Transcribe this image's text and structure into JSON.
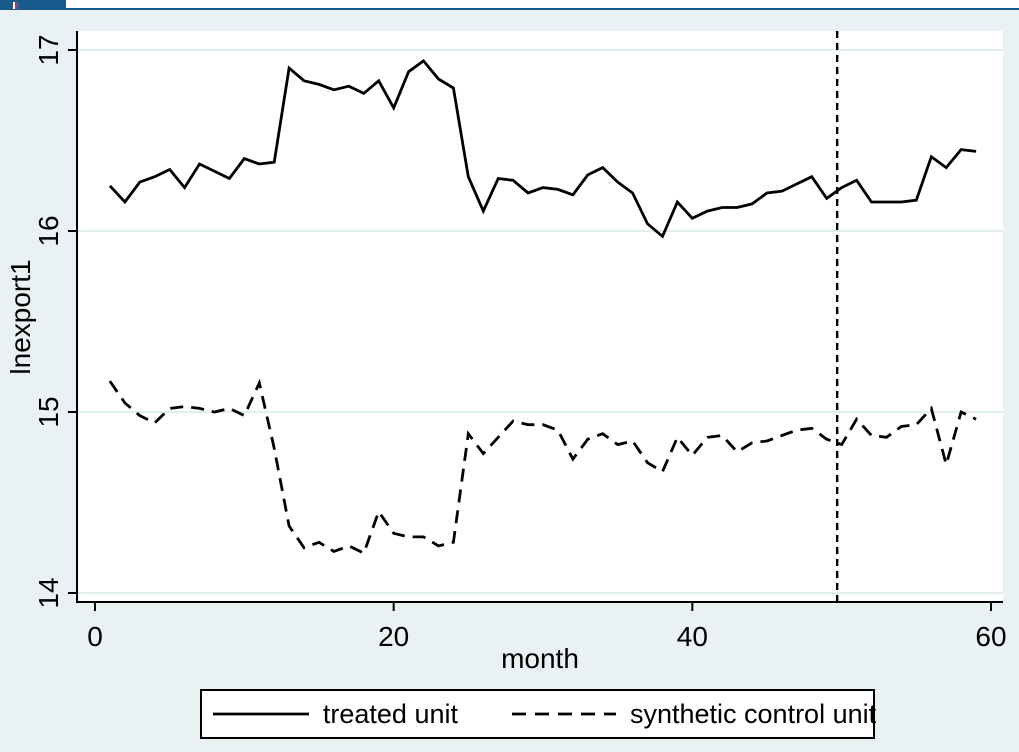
{
  "window": {
    "tab_label": "",
    "tab_color": "#175a8c"
  },
  "colors": {
    "graph_background": "#eaf1f2",
    "plot_background": "#ffffff",
    "gridline": "#e2edef",
    "axis": "#000000",
    "series_line": "#000000",
    "legend_background": "#ffffff",
    "legend_border": "#000000"
  },
  "chart_data": {
    "type": "line",
    "title": "",
    "xlabel": "month",
    "ylabel": "lnexport1",
    "x_ticks": [
      0,
      20,
      40,
      60
    ],
    "y_ticks": [
      14,
      15,
      16,
      17
    ],
    "xlim": [
      -1.2,
      60.8
    ],
    "ylim": [
      13.95,
      17.11
    ],
    "grid": "horizontal",
    "legend_position": "bottom",
    "x_start": 1,
    "x_step": 1,
    "intervention_vline_x": 50,
    "intervention_vline_style": "dashed",
    "series": [
      {
        "name": "treated unit",
        "line_style": "solid",
        "values": [
          16.25,
          16.16,
          16.27,
          16.3,
          16.34,
          16.24,
          16.37,
          16.33,
          16.29,
          16.4,
          16.37,
          16.38,
          16.9,
          16.83,
          16.81,
          16.78,
          16.8,
          16.76,
          16.83,
          16.68,
          16.88,
          16.94,
          16.84,
          16.79,
          16.3,
          16.11,
          16.29,
          16.28,
          16.21,
          16.24,
          16.23,
          16.2,
          16.31,
          16.35,
          16.27,
          16.21,
          16.04,
          15.97,
          16.16,
          16.07,
          16.11,
          16.13,
          16.13,
          16.15,
          16.21,
          16.22,
          16.26,
          16.3,
          16.18,
          16.24,
          16.28,
          16.16,
          16.16,
          16.16,
          16.17,
          16.41,
          16.35,
          16.45,
          16.44
        ]
      },
      {
        "name": "synthetic control unit",
        "line_style": "dashed",
        "values": [
          15.17,
          15.05,
          14.98,
          14.94,
          15.02,
          15.03,
          15.02,
          15.0,
          15.02,
          14.98,
          15.16,
          14.8,
          14.37,
          14.25,
          14.28,
          14.23,
          14.26,
          14.22,
          14.45,
          14.33,
          14.31,
          14.31,
          14.26,
          14.28,
          14.88,
          14.77,
          14.86,
          14.95,
          14.93,
          14.93,
          14.9,
          14.74,
          14.85,
          14.88,
          14.82,
          14.84,
          14.72,
          14.67,
          14.86,
          14.76,
          14.86,
          14.87,
          14.78,
          14.83,
          14.84,
          14.87,
          14.9,
          14.91,
          14.85,
          14.82,
          14.96,
          14.87,
          14.86,
          14.92,
          14.93,
          15.02,
          14.71,
          15.0,
          14.96
        ]
      }
    ]
  }
}
